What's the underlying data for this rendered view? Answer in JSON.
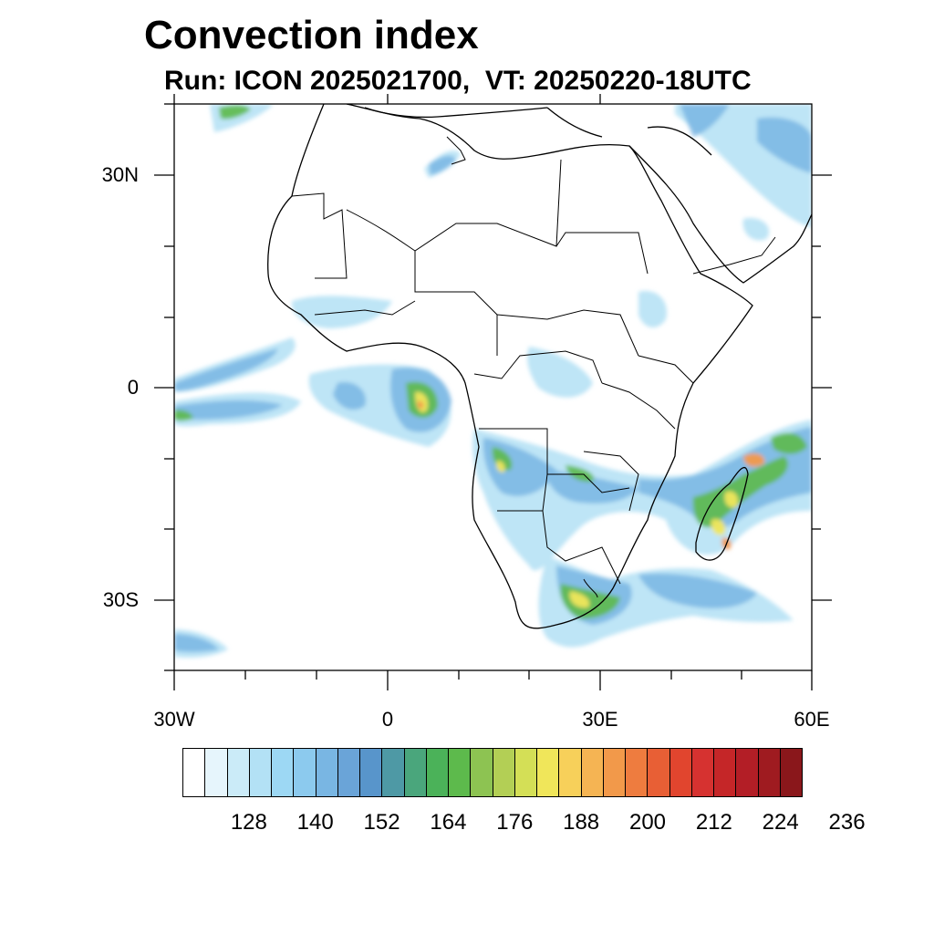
{
  "title": "Convection index",
  "subtitle": "Run: ICON 2025021700,  VT: 20250220-18UTC",
  "axes": {
    "lat_labels": [
      "30N",
      "0",
      "30S"
    ],
    "lon_labels": [
      "30W",
      "0",
      "30E",
      "60E"
    ]
  },
  "colorbar": {
    "colors": [
      "#ffffff",
      "#e6f5fc",
      "#cbebf8",
      "#b3e1f5",
      "#9dd8f4",
      "#8ccaee",
      "#79b6e3",
      "#6aa4d8",
      "#5895cb",
      "#4e99a5",
      "#4aa67c",
      "#4bb259",
      "#5dba4c",
      "#8dc352",
      "#b3cf55",
      "#d4df56",
      "#f0e65a",
      "#f7d05a",
      "#f5b453",
      "#f2994a",
      "#ee7c3f",
      "#e85f35",
      "#e1452e",
      "#d63230",
      "#c52628",
      "#b31e26",
      "#9f1b20",
      "#8a171b"
    ],
    "tick_labels": [
      "128",
      "140",
      "152",
      "164",
      "176",
      "188",
      "200",
      "212",
      "224",
      "236"
    ]
  }
}
